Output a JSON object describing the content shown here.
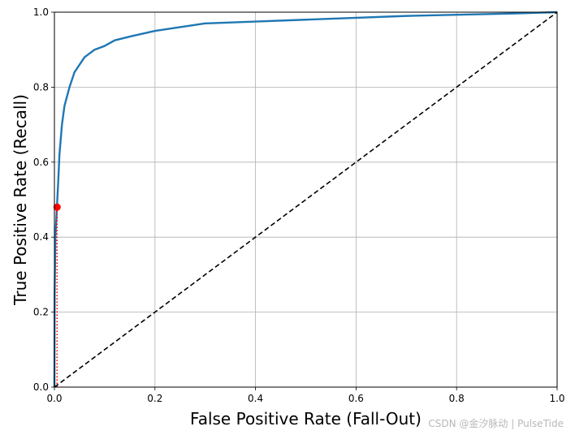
{
  "chart_data": {
    "type": "line",
    "title": "",
    "xlabel": "False Positive Rate (Fall-Out)",
    "ylabel": "True Positive Rate (Recall)",
    "xlim": [
      0,
      1
    ],
    "ylim": [
      0,
      1
    ],
    "grid": true,
    "x_ticks": [
      "0.0",
      "0.2",
      "0.4",
      "0.6",
      "0.8",
      "1.0"
    ],
    "y_ticks": [
      "0.0",
      "0.2",
      "0.4",
      "0.6",
      "0.8",
      "1.0"
    ],
    "series": [
      {
        "name": "ROC curve",
        "color": "#1f77b4",
        "style": "solid",
        "x": [
          0,
          0.0005,
          0.002,
          0.005,
          0.008,
          0.01,
          0.015,
          0.02,
          0.03,
          0.04,
          0.05,
          0.06,
          0.08,
          0.1,
          0.12,
          0.15,
          0.2,
          0.25,
          0.3,
          0.4,
          0.5,
          0.6,
          0.7,
          0.8,
          0.9,
          0.95,
          1.0
        ],
        "y": [
          0,
          0.25,
          0.4,
          0.48,
          0.56,
          0.62,
          0.7,
          0.75,
          0.8,
          0.84,
          0.86,
          0.88,
          0.9,
          0.91,
          0.925,
          0.935,
          0.95,
          0.96,
          0.97,
          0.975,
          0.98,
          0.985,
          0.99,
          0.993,
          0.996,
          0.998,
          1.0
        ]
      },
      {
        "name": "random classifier",
        "color": "#000000",
        "style": "dashed",
        "x": [
          0,
          1
        ],
        "y": [
          0,
          1
        ]
      }
    ],
    "annotations": [
      {
        "name": "threshold point",
        "type": "point",
        "color": "#ff0000",
        "x": 0.0053,
        "y": 0.48
      },
      {
        "name": "vertical dotted guide",
        "type": "dotted-line",
        "color": "#ff0000",
        "x": [
          0.0053,
          0.0053
        ],
        "y": [
          0,
          0.48
        ]
      }
    ]
  },
  "watermark": "CSDN @金汐脉动 | PulseTide"
}
